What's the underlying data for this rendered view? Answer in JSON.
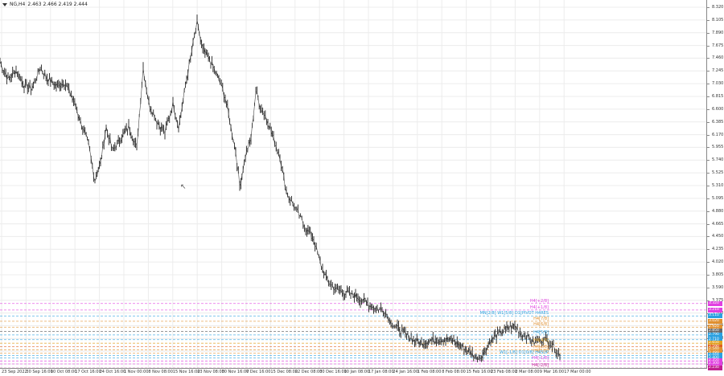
{
  "header": {
    "symbol_timeframe": "NG,H4",
    "ohlc": "2.463 2.466 2.419 2.444"
  },
  "y_axis": {
    "ticks": [
      "8.320",
      "8.105",
      "7.890",
      "7.675",
      "7.460",
      "7.245",
      "7.030",
      "6.815",
      "6.600",
      "6.385",
      "6.170",
      "5.955",
      "5.740",
      "5.525",
      "5.310",
      "5.095",
      "4.880",
      "4.665",
      "4.450",
      "4.235",
      "4.020",
      "3.805",
      "3.590",
      "3.375",
      "3.160",
      "2.945",
      "2.730",
      "2.515",
      "2.300"
    ]
  },
  "x_axis": {
    "ticks": [
      "23 Sep 2022",
      "30 Sep 16:00",
      "10 Oct 08:00",
      "17 Oct 16:00",
      "24 Oct 16:00",
      "1 Nov 00:00",
      "8 Nov 08:00",
      "15 Nov 16:00",
      "23 Nov 08:00",
      "30 Nov 16:00",
      "7 Dec 16:00",
      "15 Dec 08:00",
      "22 Dec 08:00",
      "30 Dec 16:00",
      "10 Jan 08:00",
      "17 Jan 08:00",
      "24 Jan 16:00",
      "1 Feb 08:00",
      "8 Feb 08:00",
      "15 Feb 16:00",
      "23 Feb 08:00",
      "2 Mar 08:00",
      "9 Mar 16:00",
      "17 Mar 00:00"
    ]
  },
  "levels": [
    {
      "label": "H4[+2/8]",
      "badge": "3.320",
      "color": "#e040e0"
    },
    {
      "label": "H4[+1/8]",
      "badge": "3.210",
      "color": "#e040e0"
    },
    {
      "label": "MN[2/8] W1[5/8] D1[PIVOT H4RES",
      "badge": "3.110",
      "color": "#2aa0e0"
    },
    {
      "label": "H4[7/8]",
      "badge": "3.020",
      "color": "#e09030"
    },
    {
      "label": "H4[6/8]",
      "badge": "2.920",
      "color": "#e09030"
    },
    {
      "label": "",
      "badge": "2.850",
      "color": "#6a6a6a"
    },
    {
      "label": "H4[5/8]",
      "badge": "2.790",
      "color": "#2aa0e0"
    },
    {
      "label": "",
      "badge": "2.710",
      "color": "#2aa0e0"
    },
    {
      "label": "H4[4/8]",
      "badge": "2.650",
      "color": "#e0a020"
    },
    {
      "label": "",
      "badge": "2.590",
      "color": "#e06020"
    },
    {
      "label": "H4[2/8]",
      "badge": "2.540",
      "color": "#e09030"
    },
    {
      "label": "H4[1/8]",
      "badge": "2.480",
      "color": "#e09030"
    },
    {
      "label": "W1[-1/8] D1[0/8] H4SUP",
      "badge": "2.444",
      "color": "#2aa0e0"
    },
    {
      "label": "",
      "badge": "2.400",
      "color": "#2aa0e0"
    },
    {
      "label": "H4[-1/8]",
      "badge": "2.350",
      "color": "#e040e0"
    },
    {
      "label": "",
      "badge": "2.300",
      "color": "#e040e0"
    },
    {
      "label": "H4[-2/8]",
      "badge": "2.230",
      "color": "#c02090"
    }
  ]
}
